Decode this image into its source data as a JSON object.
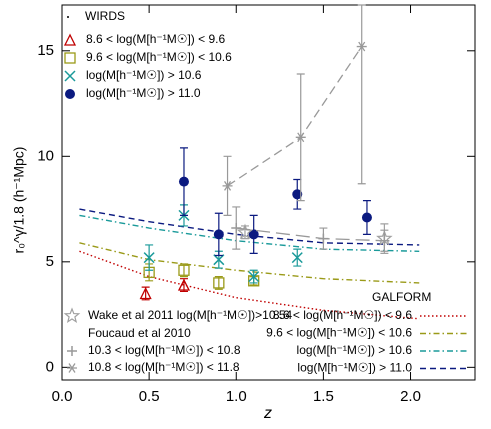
{
  "chart_data": {
    "type": "scatter",
    "xlabel": "z",
    "ylabel": "r₀^γ/1.8 (h⁻¹Mpc)",
    "xlim": [
      0,
      2.37
    ],
    "ylim": [
      -0.6,
      17.17
    ],
    "xticks": [
      {
        "value": 0,
        "label": "0.0"
      },
      {
        "value": 0.5,
        "label": "0.5"
      },
      {
        "value": 1,
        "label": "1.0"
      },
      {
        "value": 1.5,
        "label": "1.5"
      },
      {
        "value": 2,
        "label": "2.0"
      }
    ],
    "yticks": [
      0,
      5,
      10,
      15
    ],
    "wirds_title": "WIRDS",
    "foucaud_title": "Foucaud et al 2010",
    "galform_title": "GALFORM",
    "series": [
      {
        "name": "8.6 < log(M[h⁻¹M☉]) <  9.6",
        "color": "#c00000",
        "marker": "triangle",
        "x": [
          0.48,
          0.7
        ],
        "values": [
          3.5,
          3.9
        ],
        "errors": [
          0.3,
          0.3
        ]
      },
      {
        "name": "9.6 < log(M[h⁻¹M☉]) < 10.6",
        "color": "#9a9a18",
        "marker": "square",
        "x": [
          0.5,
          0.7,
          0.9,
          1.1
        ],
        "values": [
          4.5,
          4.6,
          4.0,
          4.1
        ],
        "errors": [
          0.4,
          0.3,
          0.3,
          0.2
        ]
      },
      {
        "name": "log(M[h⁻¹M☉]) > 10.6",
        "color": "#1a9a9a",
        "marker": "x",
        "x": [
          0.5,
          0.7,
          0.9,
          1.1,
          1.35
        ],
        "values": [
          5.2,
          7.2,
          5.1,
          4.3,
          5.2
        ],
        "errors": [
          0.6,
          0.5,
          0.4,
          0.3,
          0.4
        ]
      },
      {
        "name": "log(M[h⁻¹M☉]) > 11.0",
        "color": "#0b1a80",
        "marker": "circle",
        "x": [
          0.7,
          0.9,
          1.1,
          1.35,
          1.75
        ],
        "values": [
          8.8,
          6.3,
          6.3,
          8.2,
          7.1
        ],
        "errors": [
          1.6,
          1.0,
          0.9,
          0.7,
          0.8
        ]
      },
      {
        "name": "Wake et al 2011 log(M[h⁻¹M☉])>10.54",
        "color": "#a0a0a0",
        "marker": "star",
        "x": [
          1.05,
          1.85
        ],
        "values": [
          6.4,
          6.1
        ],
        "errors": [
          0.3,
          0.7
        ]
      },
      {
        "name": "10.3 < log(M[h⁻¹M☉]) < 10.8",
        "color": "#999999",
        "marker": "plus",
        "line": "longdash",
        "x": [
          1.0,
          1.5,
          1.85
        ],
        "values": [
          6.6,
          6.1,
          6.0
        ],
        "errors": [
          1.0,
          0.5,
          0.5
        ]
      },
      {
        "name": "10.8 < log(M[h⁻¹M☉]) < 11.8",
        "color": "#999999",
        "marker": "asterisk",
        "line": "dash",
        "x": [
          0.95,
          1.37,
          1.72
        ],
        "values": [
          8.6,
          10.9,
          15.2
        ],
        "errors": [
          1.4,
          3.0,
          6.5
        ]
      }
    ],
    "models": [
      {
        "name": "8.6 < log(M[h⁻¹M☉]) <  9.6",
        "color": "#c00000",
        "dash": "1.5,2.5",
        "x": [
          0.1,
          0.5,
          1.0,
          1.5,
          2.05
        ],
        "values": [
          5.5,
          4.3,
          3.3,
          2.7,
          2.3
        ]
      },
      {
        "name": "9.6 < log(M[h⁻¹M☉]) < 10.6",
        "color": "#9a9a18",
        "dash": "6,3,1.5,3",
        "x": [
          0.1,
          0.5,
          1.0,
          1.5,
          2.05
        ],
        "values": [
          5.9,
          5.1,
          4.6,
          4.2,
          4.0
        ]
      },
      {
        "name": "log(M[h⁻¹M☉]) > 10.6",
        "color": "#1a9a9a",
        "dash": "6,3,1.5,3",
        "x": [
          0.1,
          0.5,
          1.0,
          1.5,
          2.05
        ],
        "values": [
          7.2,
          6.6,
          6.0,
          5.6,
          5.5
        ]
      },
      {
        "name": "log(M[h⁻¹M☉]) > 11.0",
        "color": "#0b1a80",
        "dash": "6,4",
        "x": [
          0.1,
          0.5,
          1.0,
          1.5,
          2.05
        ],
        "values": [
          7.5,
          6.9,
          6.3,
          5.9,
          5.8
        ]
      }
    ]
  }
}
